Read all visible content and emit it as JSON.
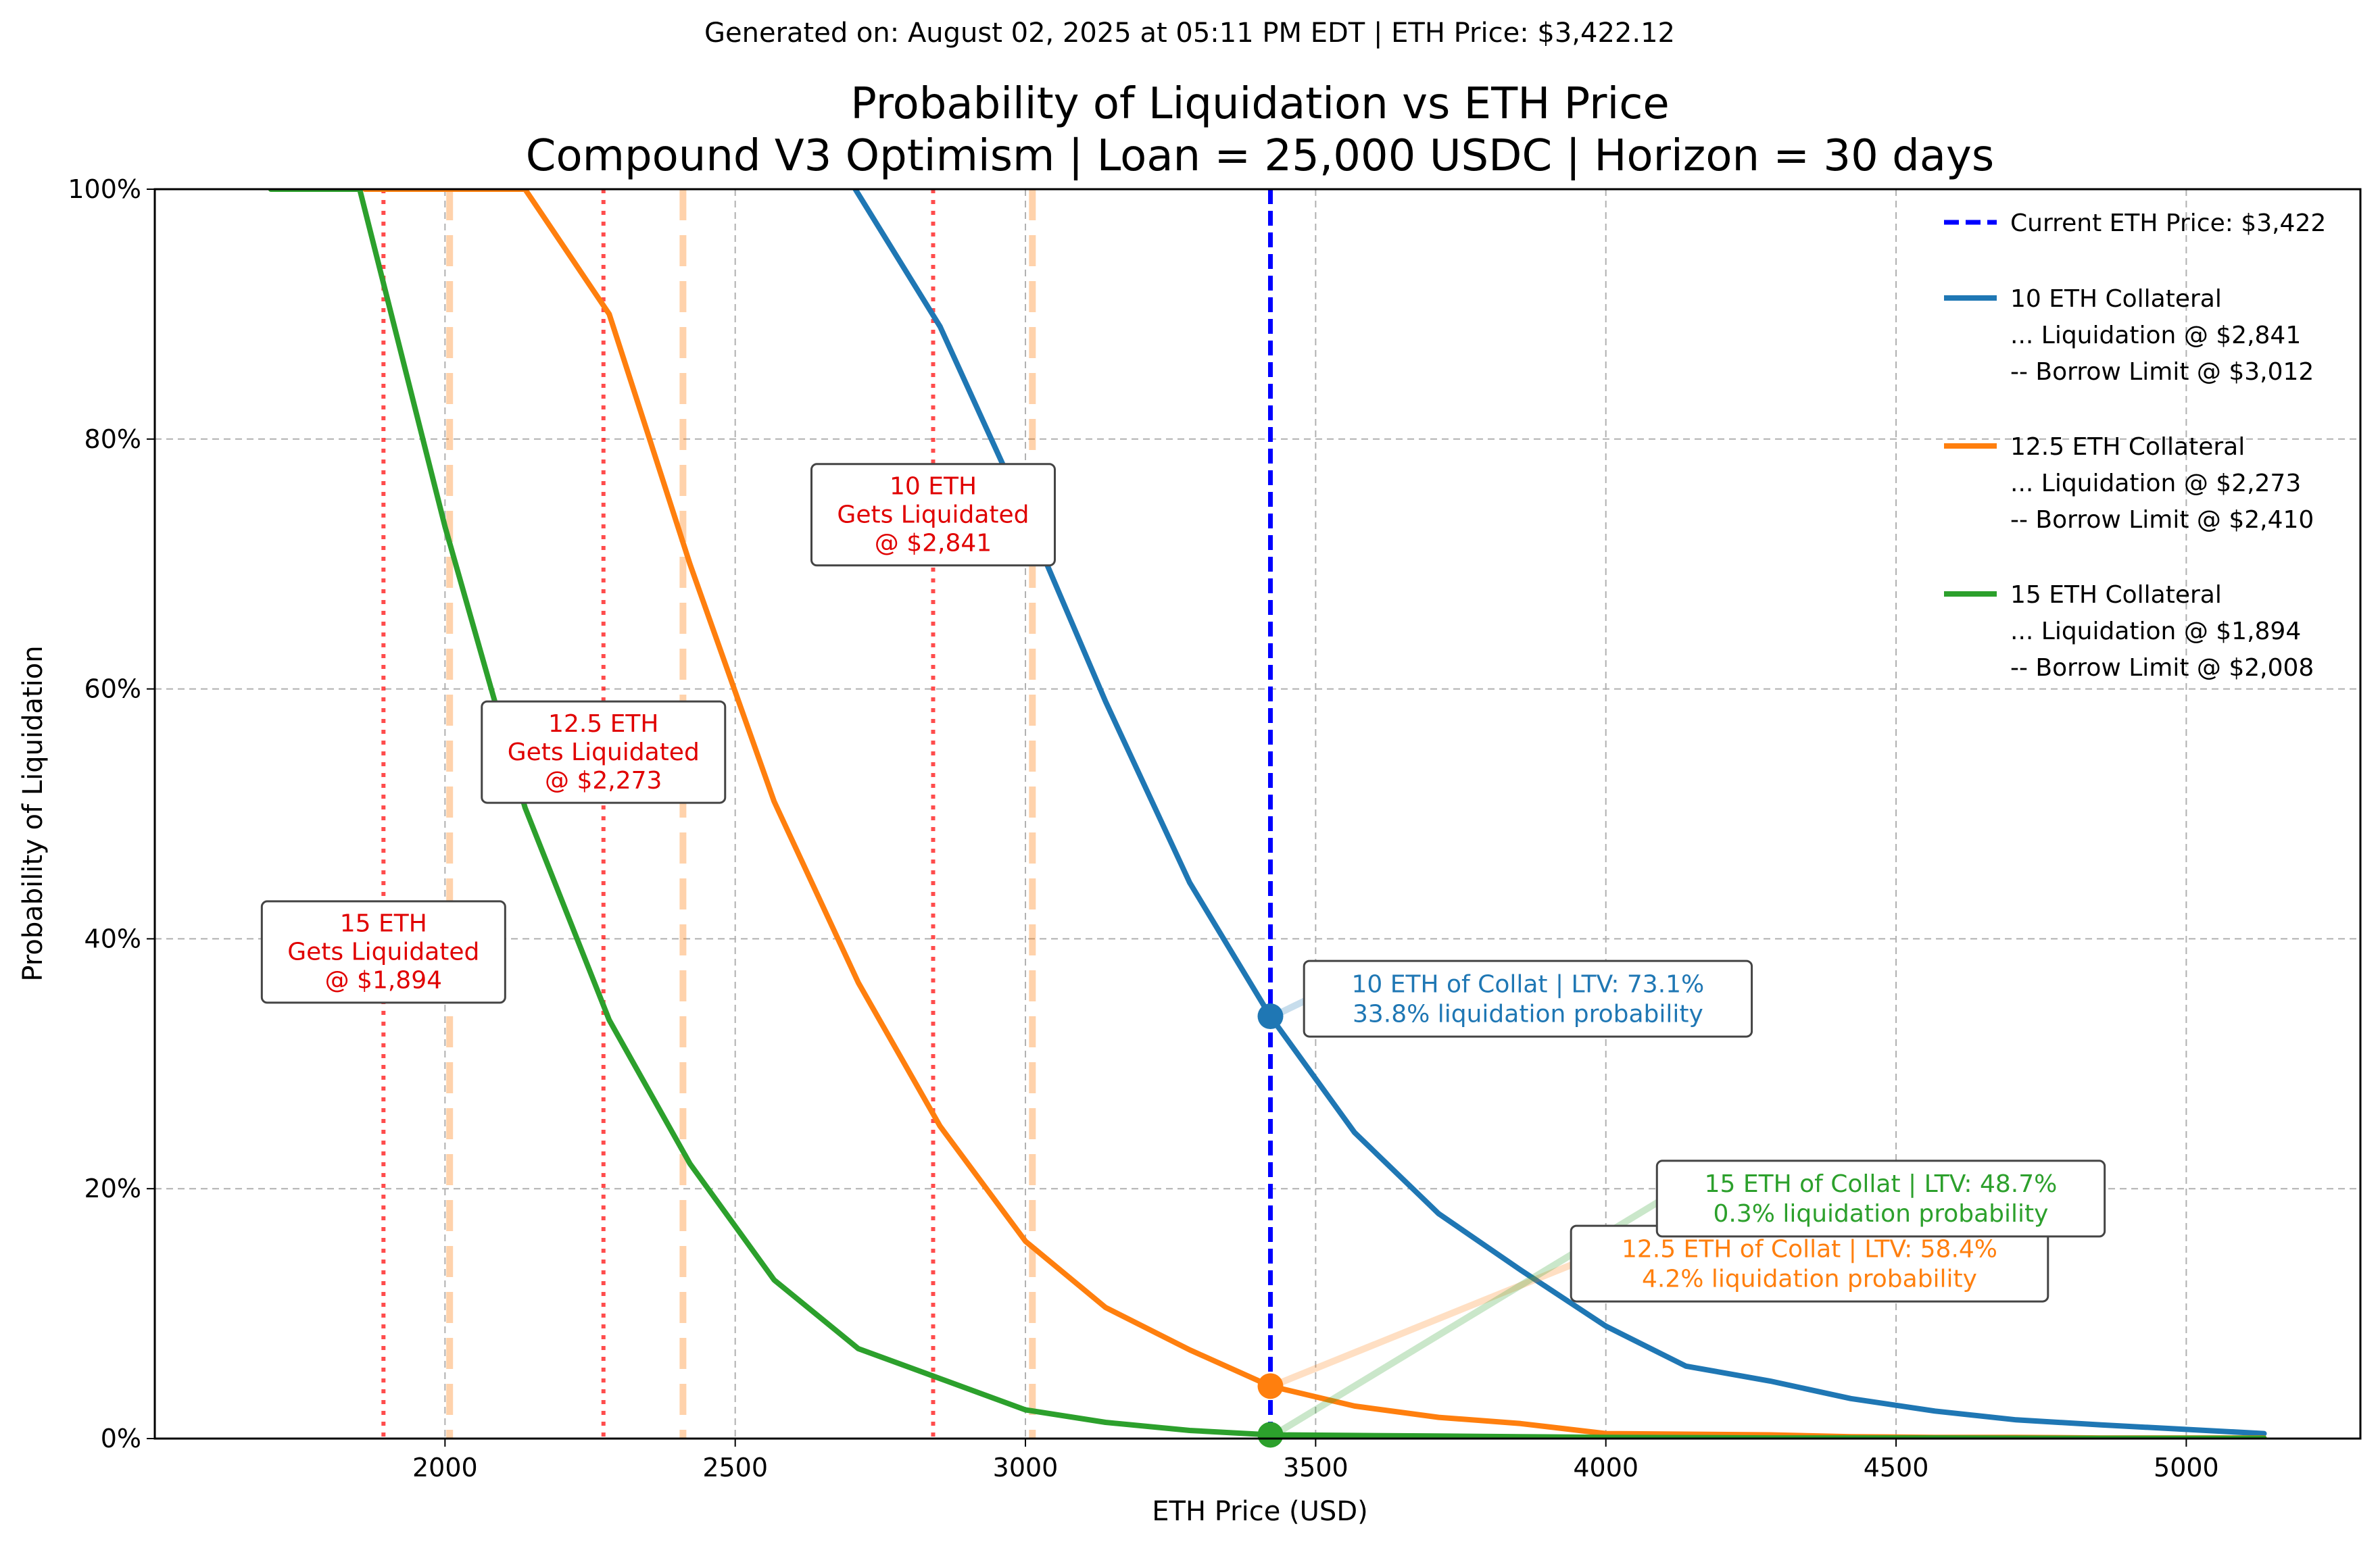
{
  "header": {
    "generated": "Generated on: August 02, 2025 at 05:11 PM EDT | ETH Price: $3,422.12"
  },
  "chart_data": {
    "type": "line",
    "title": "Probability of Liquidation vs ETH Price",
    "subtitle": "Compound V3 Optimism | Loan = 25,000 USDC | Horizon = 30 days",
    "xlabel": "ETH Price (USD)",
    "ylabel": "Probability of Liquidation",
    "xlim": [
      1500,
      5300
    ],
    "ylim": [
      0,
      100
    ],
    "x_ticks": [
      2000,
      2500,
      3000,
      3500,
      4000,
      4500,
      5000
    ],
    "x_tick_labels": [
      "2000",
      "2500",
      "3000",
      "3500",
      "4000",
      "4500",
      "5000"
    ],
    "y_ticks": [
      0,
      20,
      40,
      60,
      80,
      100
    ],
    "y_tick_labels": [
      "0%",
      "20%",
      "40%",
      "60%",
      "80%",
      "100%"
    ],
    "grid": true,
    "legend_position": "top-right",
    "current_price": {
      "value": 3422.12,
      "legend_label": "Current ETH Price: $3,422",
      "color": "#0000ff"
    },
    "series": [
      {
        "name": "10 ETH Collateral",
        "color": "#1f77b4",
        "legend_lines": [
          "... Liquidation @ $2,841",
          "-- Borrow Limit @ $3,012"
        ],
        "liquidation_price": 2841,
        "borrow_limit": 3012,
        "x": [
          2707,
          2853,
          3000,
          3138,
          3283,
          3422,
          3567,
          3712,
          3853,
          4000,
          4138,
          4283,
          4422,
          4567,
          4707,
          4853,
          5134
        ],
        "values": [
          100,
          89,
          74,
          59,
          44.5,
          33.8,
          24.5,
          18,
          13.5,
          9,
          5.8,
          4.6,
          3.2,
          2.2,
          1.5,
          1.1,
          0.4
        ],
        "current_point": 33.8,
        "annotation": [
          "10 ETH of Collat | LTV: 73.1%",
          "33.8% liquidation probability"
        ],
        "liq_box": [
          "10 ETH",
          "Gets Liquidated",
          "@ $2,841"
        ]
      },
      {
        "name": "12.5 ETH Collateral",
        "color": "#ff7f0e",
        "legend_lines": [
          "... Liquidation @ $2,273",
          "-- Borrow Limit @ $2,410"
        ],
        "liquidation_price": 2273,
        "borrow_limit": 2410,
        "x": [
          1862,
          2000,
          2138,
          2283,
          2422,
          2567,
          2712,
          2853,
          3000,
          3138,
          3283,
          3422,
          3567,
          3712,
          3853,
          4000,
          4138,
          4283,
          4422,
          4567,
          4707,
          4853,
          5134
        ],
        "values": [
          100,
          100,
          100,
          90,
          70,
          51,
          36.5,
          25,
          15.8,
          10.5,
          7.1,
          4.2,
          2.6,
          1.7,
          1.2,
          0.4,
          0.35,
          0.3,
          0.15,
          0.1,
          0.1,
          0.05,
          0.05
        ],
        "current_point": 4.2,
        "annotation": [
          "12.5 ETH of Collat | LTV: 58.4%",
          "4.2% liquidation probability"
        ],
        "liq_box": [
          "12.5 ETH",
          "Gets Liquidated",
          "@ $2,273"
        ]
      },
      {
        "name": "15 ETH Collateral",
        "color": "#2ca02c",
        "legend_lines": [
          "... Liquidation @ $1,894",
          "-- Borrow Limit @ $2,008"
        ],
        "liquidation_price": 1894,
        "borrow_limit": 2008,
        "x": [
          1700,
          1853,
          2000,
          2138,
          2283,
          2422,
          2567,
          2712,
          2853,
          3000,
          3138,
          3283,
          3422,
          3567,
          3712,
          3853,
          4000,
          4283,
          4567,
          4853,
          5134
        ],
        "values": [
          100,
          100,
          73,
          50.5,
          33.5,
          22,
          12.7,
          7.2,
          4.8,
          2.3,
          1.3,
          0.65,
          0.3,
          0.25,
          0.2,
          0.15,
          0.1,
          0.05,
          0.05,
          0.02,
          0.02
        ],
        "current_point": 0.3,
        "annotation": [
          "15 ETH of Collat | LTV: 48.7%",
          "0.3% liquidation probability"
        ],
        "liq_box": [
          "15 ETH",
          "Gets Liquidated",
          "@ $1,894"
        ]
      }
    ]
  }
}
